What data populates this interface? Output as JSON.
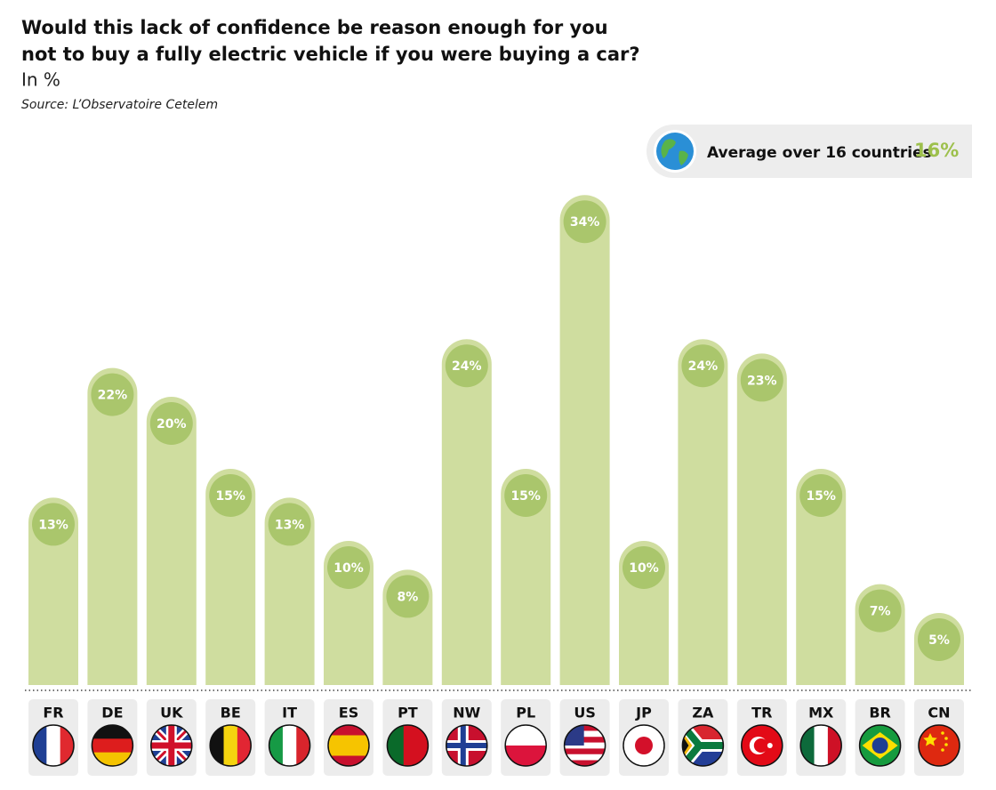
{
  "chart_data": {
    "type": "bar",
    "title": [
      "Would this lack of confidence be reason enough for you",
      "not to buy a fully electric vehicle if you were buying a car?"
    ],
    "subtitle": "In %",
    "source": "Source: L’Observatoire Cetelem",
    "average": {
      "text": "Average over 16 countries",
      "value": 16,
      "label": "16%"
    },
    "categories": [
      "FR",
      "DE",
      "UK",
      "BE",
      "IT",
      "ES",
      "PT",
      "NW",
      "PL",
      "US",
      "JP",
      "ZA",
      "TR",
      "MX",
      "BR",
      "CN"
    ],
    "values": [
      13,
      22,
      20,
      15,
      13,
      10,
      8,
      24,
      15,
      34,
      10,
      24,
      23,
      15,
      7,
      5
    ],
    "value_labels": [
      "13%",
      "22%",
      "20%",
      "15%",
      "13%",
      "10%",
      "8%",
      "24%",
      "15%",
      "34%",
      "10%",
      "24%",
      "23%",
      "15%",
      "7%",
      "5%"
    ],
    "color": "#cfdd9f",
    "label_color": "#aac66c"
  }
}
